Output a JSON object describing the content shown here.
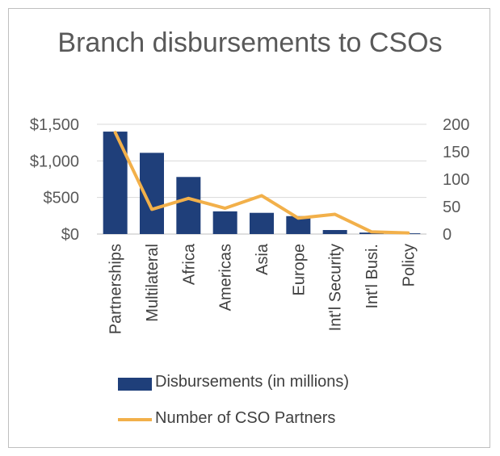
{
  "chart_data": {
    "type": "bar",
    "title": "Branch disbursements to CSOs",
    "categories": [
      "Partnerships",
      "Multilateral",
      "Africa",
      "Americas",
      "Asia",
      "Europe",
      "Int'l Security",
      "Int'l Busi.",
      "Policy"
    ],
    "series": [
      {
        "name": "Disbursements (in millions)",
        "type": "bar",
        "axis": "left",
        "color": "#1f3f7a",
        "values": [
          1400,
          1110,
          780,
          310,
          290,
          245,
          55,
          20,
          10
        ]
      },
      {
        "name": "Number of CSO Partners",
        "type": "line",
        "axis": "right",
        "color": "#f2b04a",
        "values": [
          185,
          45,
          65,
          47,
          70,
          29,
          36,
          4,
          2
        ]
      }
    ],
    "y_left": {
      "ylim": [
        0,
        1500
      ],
      "ticks": [
        "$0",
        "$500",
        "$1,000",
        "$1,500"
      ],
      "tick_values": [
        0,
        500,
        1000,
        1500
      ]
    },
    "y_right": {
      "ylim": [
        0,
        200
      ],
      "ticks": [
        "0",
        "50",
        "100",
        "150",
        "200"
      ],
      "tick_values": [
        0,
        50,
        100,
        150,
        200
      ]
    },
    "gridlines": true,
    "legend_position": "bottom"
  }
}
